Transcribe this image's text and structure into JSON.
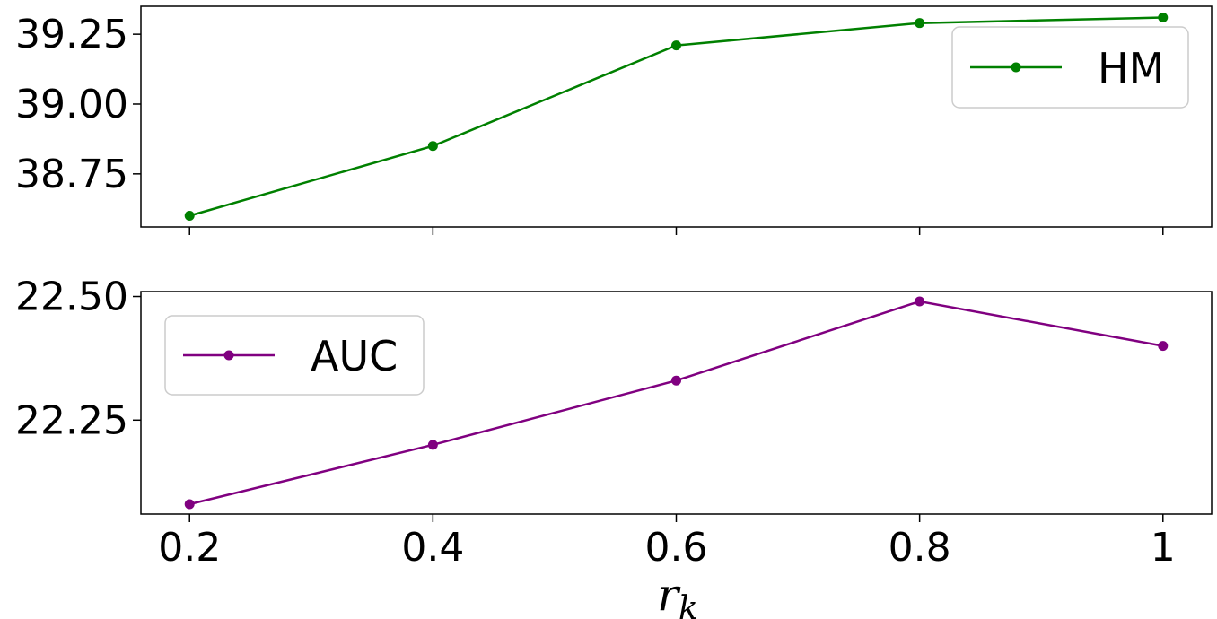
{
  "chart_data": {
    "type": "line",
    "x": [
      0.2,
      0.4,
      0.6,
      0.8,
      1
    ],
    "x_tick_labels": [
      "0.2",
      "0.4",
      "0.6",
      "0.8",
      "1"
    ],
    "xlabel_main": "r",
    "xlabel_sub": "k",
    "grid": false,
    "panels": [
      {
        "series": [
          {
            "name": "HM",
            "color": "#008000",
            "values": [
              38.6,
              38.85,
              39.21,
              39.29,
              39.31
            ]
          }
        ],
        "ylim": [
          38.56,
          39.35
        ],
        "yticks": [
          38.75,
          39.0,
          39.25
        ],
        "ytick_labels": [
          "38.75",
          "39.00",
          "39.25"
        ],
        "legend_position": "upper right"
      },
      {
        "series": [
          {
            "name": "AUC",
            "color": "#800080",
            "values": [
              22.08,
              22.2,
              22.33,
              22.49,
              22.4
            ]
          }
        ],
        "ylim": [
          22.06,
          22.51
        ],
        "yticks": [
          22.25,
          22.5
        ],
        "ytick_labels": [
          "22.25",
          "22.50"
        ],
        "legend_position": "upper left"
      }
    ]
  }
}
